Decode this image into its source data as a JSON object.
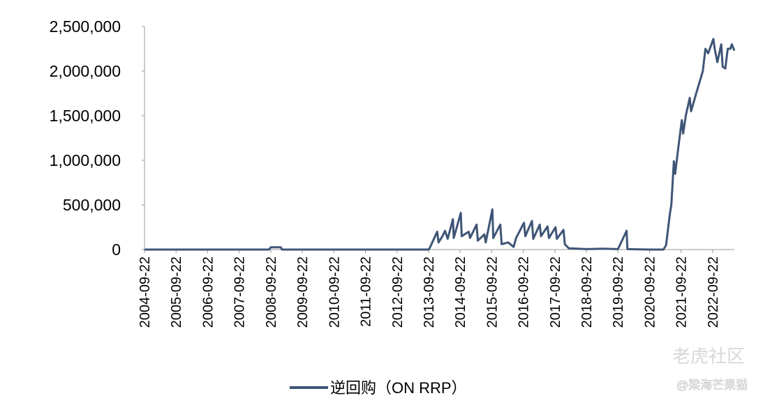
{
  "chart_data": {
    "type": "line",
    "x": [
      "2004-09-22",
      "2005-09-22",
      "2006-09-22",
      "2007-09-22",
      "2008-09-01",
      "2008-09-22",
      "2009-01-15",
      "2009-02-01",
      "2010-09-22",
      "2011-09-22",
      "2012-09-22",
      "2013-09-22",
      "2013-10-01",
      "2013-12-31",
      "2014-01-15",
      "2014-03-01",
      "2014-03-31",
      "2014-05-01",
      "2014-06-30",
      "2014-07-10",
      "2014-09-30",
      "2014-10-10",
      "2014-12-31",
      "2015-01-15",
      "2015-03-31",
      "2015-04-15",
      "2015-06-30",
      "2015-07-15",
      "2015-09-30",
      "2015-10-10",
      "2015-12-31",
      "2016-01-15",
      "2016-03-31",
      "2016-06-01",
      "2016-06-30",
      "2016-09-30",
      "2016-10-15",
      "2016-12-31",
      "2017-01-15",
      "2017-03-31",
      "2017-04-15",
      "2017-06-30",
      "2017-07-15",
      "2017-09-30",
      "2017-10-15",
      "2017-12-31",
      "2018-01-15",
      "2018-03-01",
      "2018-09-22",
      "2019-03-31",
      "2019-09-22",
      "2019-12-31",
      "2020-01-10",
      "2020-09-22",
      "2021-03-01",
      "2021-04-01",
      "2021-05-15",
      "2021-06-01",
      "2021-06-30",
      "2021-07-15",
      "2021-08-15",
      "2021-09-30",
      "2021-10-15",
      "2021-11-15",
      "2021-12-31",
      "2022-01-15",
      "2022-03-15",
      "2022-04-15",
      "2022-05-31",
      "2022-06-30",
      "2022-08-01",
      "2022-09-30",
      "2022-10-15",
      "2022-11-15",
      "2022-12-30",
      "2023-01-15",
      "2023-02-15",
      "2023-03-15",
      "2023-04-15",
      "2023-05-01",
      "2023-05-31"
    ],
    "series": [
      {
        "name": "逆回购（ON RRP）",
        "color": "#3f5577",
        "values": [
          0,
          0,
          0,
          0,
          0,
          25000,
          25000,
          0,
          0,
          0,
          0,
          0,
          10000,
          200000,
          80000,
          150000,
          210000,
          120000,
          340000,
          130000,
          410000,
          150000,
          200000,
          130000,
          280000,
          100000,
          170000,
          80000,
          450000,
          130000,
          280000,
          60000,
          80000,
          30000,
          130000,
          300000,
          150000,
          320000,
          120000,
          280000,
          150000,
          260000,
          130000,
          250000,
          120000,
          220000,
          60000,
          15000,
          5000,
          10000,
          5000,
          210000,
          5000,
          0,
          0,
          50000,
          400000,
          500000,
          990000,
          850000,
          1100000,
          1450000,
          1300000,
          1500000,
          1700000,
          1550000,
          1750000,
          1850000,
          2000000,
          2250000,
          2200000,
          2360000,
          2250000,
          2100000,
          2300000,
          2050000,
          2030000,
          2250000,
          2250000,
          2300000,
          2230000
        ]
      }
    ],
    "xlim": [
      "2004-09-22",
      "2023-05-31"
    ],
    "xticks": [
      "2004-09-22",
      "2005-09-22",
      "2006-09-22",
      "2007-09-22",
      "2008-09-22",
      "2009-09-22",
      "2010-09-22",
      "2011-09-22",
      "2012-09-22",
      "2013-09-22",
      "2014-09-22",
      "2015-09-22",
      "2016-09-22",
      "2017-09-22",
      "2018-09-22",
      "2019-09-22",
      "2020-09-22",
      "2021-09-22",
      "2022-09-22"
    ],
    "ylim": [
      0,
      2500000
    ],
    "yticks": [
      0,
      {
        "value": 500000,
        "label": "500,000"
      },
      {
        "value": 1000000,
        "label": "1,000,000"
      },
      {
        "value": 1500000,
        "label": "1,500,000"
      },
      {
        "value": 2000000,
        "label": "2,000,000"
      },
      {
        "value": 2500000,
        "label": "2,500,000"
      }
    ],
    "legend": "bottom",
    "watermarks": [
      "老虎社区",
      "@梁海芒果猫"
    ]
  }
}
